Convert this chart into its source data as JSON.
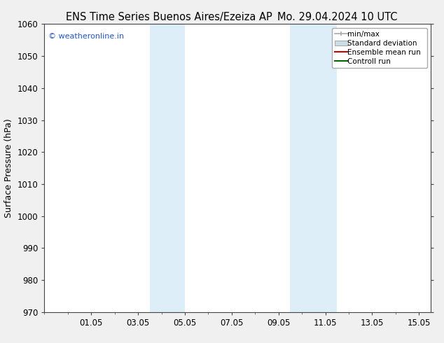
{
  "title_left": "ENS Time Series Buenos Aires/Ezeiza AP",
  "title_right": "Mo. 29.04.2024 10 UTC",
  "ylabel": "Surface Pressure (hPa)",
  "ylim": [
    970,
    1060
  ],
  "yticks": [
    970,
    980,
    990,
    1000,
    1010,
    1020,
    1030,
    1040,
    1050,
    1060
  ],
  "xlim": [
    0,
    16.5
  ],
  "xtick_labels": [
    "01.05",
    "03.05",
    "05.05",
    "07.05",
    "09.05",
    "11.05",
    "13.05",
    "15.05"
  ],
  "xtick_positions": [
    2,
    4,
    6,
    8,
    10,
    12,
    14,
    16
  ],
  "shaded_regions": [
    {
      "x_start": 4.5,
      "x_end": 5.5,
      "color": "#ddeef8"
    },
    {
      "x_start": 5.5,
      "x_end": 6.0,
      "color": "#ddeef8"
    },
    {
      "x_start": 10.5,
      "x_end": 11.5,
      "color": "#ddeef8"
    },
    {
      "x_start": 11.5,
      "x_end": 12.5,
      "color": "#ddeef8"
    }
  ],
  "watermark": "© weatheronline.in",
  "watermark_color": "#2255cc",
  "legend_items": [
    {
      "label": "min/max",
      "color": "#aaaaaa",
      "type": "minmax"
    },
    {
      "label": "Standard deviation",
      "color": "#ccdde8",
      "type": "fill"
    },
    {
      "label": "Ensemble mean run",
      "color": "#cc0000",
      "type": "line"
    },
    {
      "label": "Controll run",
      "color": "#006600",
      "type": "line"
    }
  ],
  "bg_color": "#f0f0f0",
  "plot_bg_color": "#ffffff",
  "title_fontsize": 10.5,
  "axis_label_fontsize": 9,
  "tick_fontsize": 8.5,
  "legend_fontsize": 7.5
}
